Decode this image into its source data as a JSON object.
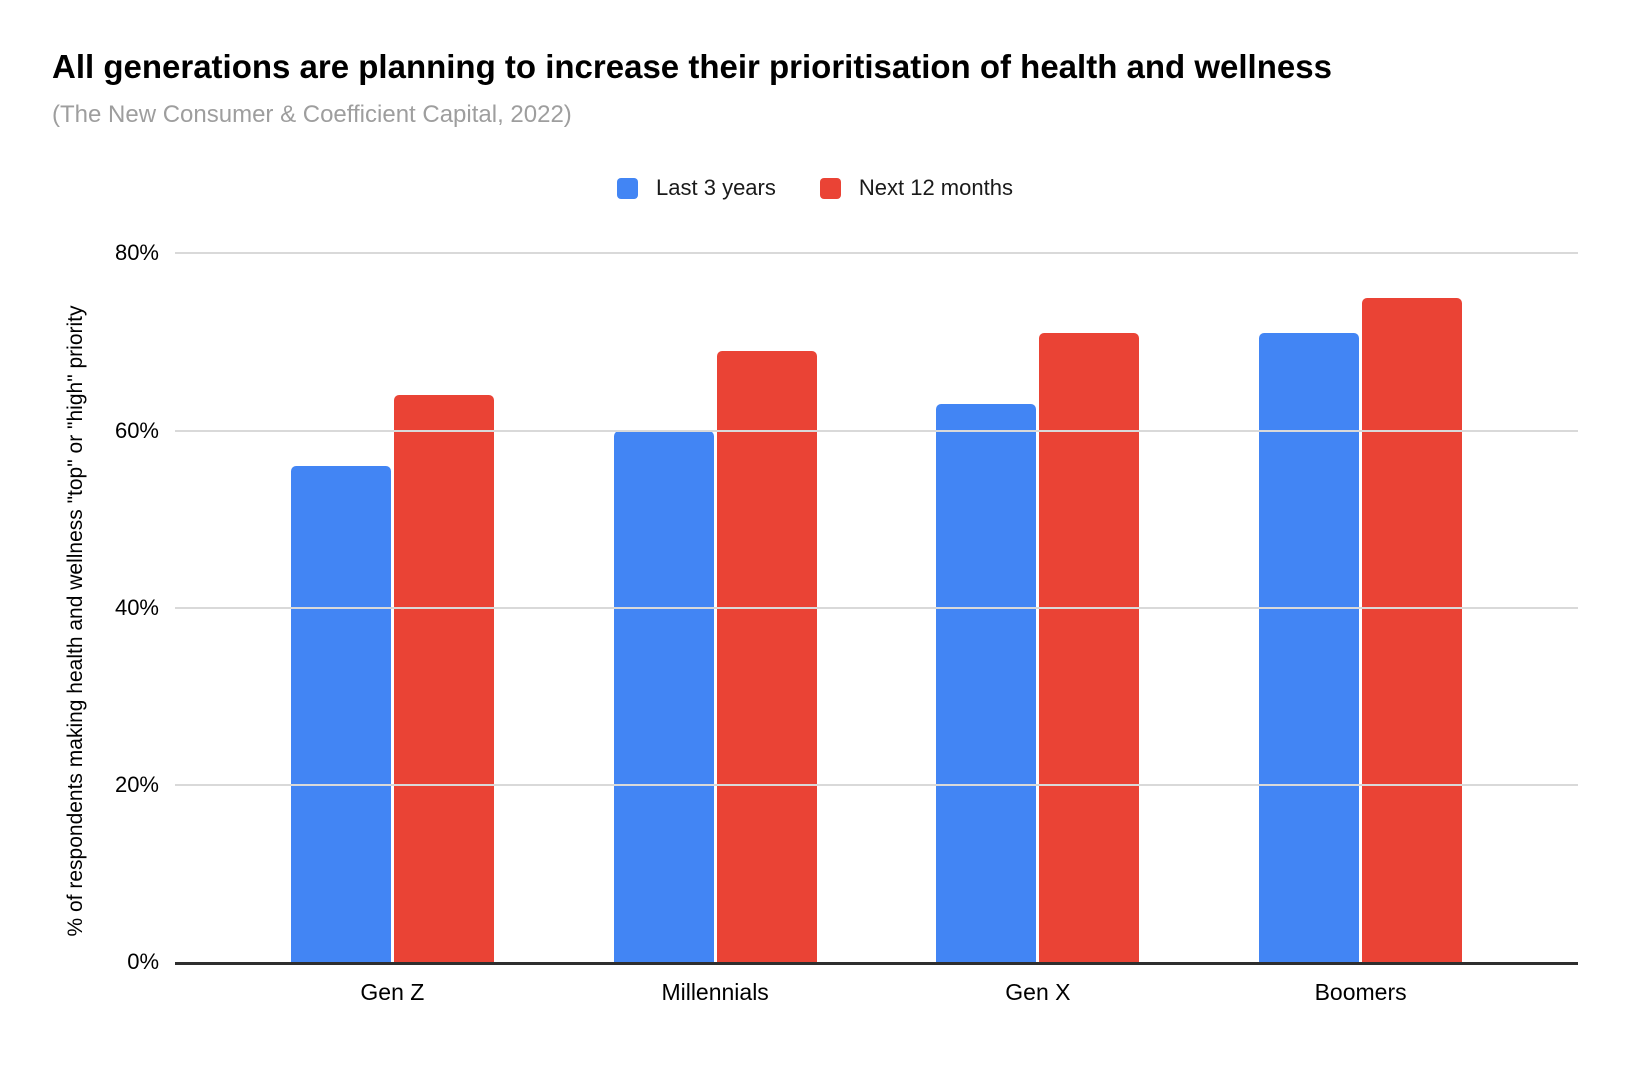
{
  "chart_data": {
    "type": "bar",
    "title": "All generations are planning to increase their prioritisation of health and wellness",
    "subtitle": "(The New Consumer & Coefficient Capital, 2022)",
    "ylabel": "% of respondents making health and wellness \"top\" or \"high\" priority",
    "xlabel": "",
    "categories": [
      "Gen Z",
      "Millennials",
      "Gen X",
      "Boomers"
    ],
    "series": [
      {
        "name": "Last 3 years",
        "color": "#4285F4",
        "values": [
          56,
          60,
          63,
          71
        ]
      },
      {
        "name": "Next 12 months",
        "color": "#EA4335",
        "values": [
          64,
          69,
          71,
          75
        ]
      }
    ],
    "ylim": [
      0,
      80
    ],
    "yticks": [
      0,
      20,
      40,
      60,
      80
    ],
    "ytick_labels": [
      "0%",
      "20%",
      "40%",
      "60%",
      "80%"
    ],
    "grid": "horizontal",
    "legend_position": "top-center"
  },
  "colors": {
    "series_blue": "#4285F4",
    "series_red": "#EA4335",
    "gridline": "#d9d9d9",
    "axis_line": "#2e2e2e",
    "subtitle_text": "#9e9e9e",
    "text": "#000000",
    "background": "#ffffff"
  }
}
